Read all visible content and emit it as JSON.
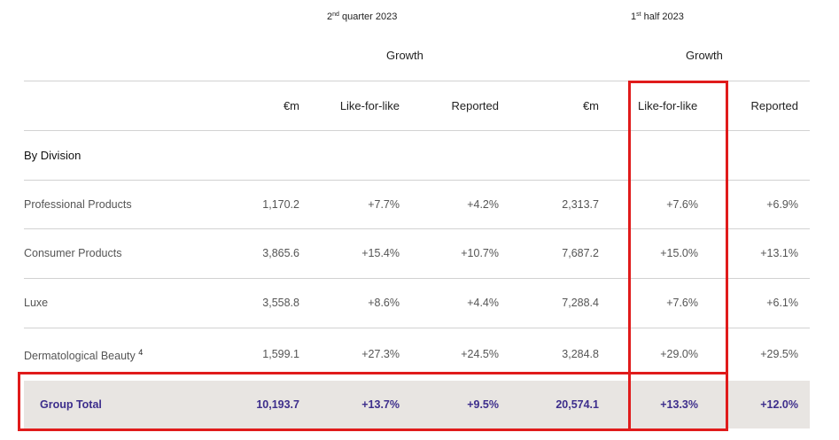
{
  "header": {
    "period_q2_num": "2",
    "period_q2_sup": "nd",
    "period_q2_rest": " quarter 2023",
    "period_h1_num": "1",
    "period_h1_sup": "st",
    "period_h1_rest": " half 2023",
    "growth_q2": "Growth",
    "growth_h1": "Growth"
  },
  "columns": {
    "q2_em": "€m",
    "q2_lfl": "Like-for-like",
    "q2_reported": "Reported",
    "h1_em": "€m",
    "h1_lfl": "Like-for-like",
    "h1_reported": "Reported"
  },
  "section_title": "By Division",
  "rows": [
    {
      "label": "Professional Products",
      "note": "",
      "q2_em": "1,170.2",
      "q2_lfl": "+7.7%",
      "q2_rep": "+4.2%",
      "h1_em": "2,313.7",
      "h1_lfl": "+7.6%",
      "h1_rep": "+6.9%"
    },
    {
      "label": "Consumer Products",
      "note": "",
      "q2_em": "3,865.6",
      "q2_lfl": "+15.4%",
      "q2_rep": "+10.7%",
      "h1_em": "7,687.2",
      "h1_lfl": "+15.0%",
      "h1_rep": "+13.1%"
    },
    {
      "label": "Luxe",
      "note": "",
      "q2_em": "3,558.8",
      "q2_lfl": "+8.6%",
      "q2_rep": "+4.4%",
      "h1_em": "7,288.4",
      "h1_lfl": "+7.6%",
      "h1_rep": "+6.1%"
    },
    {
      "label": "Dermatological Beauty",
      "note": "4",
      "q2_em": "1,599.1",
      "q2_lfl": "+27.3%",
      "q2_rep": "+24.5%",
      "h1_em": "3,284.8",
      "h1_lfl": "+29.0%",
      "h1_rep": "+29.5%"
    }
  ],
  "total": {
    "label": "Group Total",
    "q2_em": "10,193.7",
    "q2_lfl": "+13.7%",
    "q2_rep": "+9.5%",
    "h1_em": "20,574.1",
    "h1_lfl": "+13.3%",
    "h1_rep": "+12.0%"
  },
  "colors": {
    "highlight": "#e01b1b",
    "total_text": "#3d2e8c",
    "total_band": "#e8e5e2"
  }
}
